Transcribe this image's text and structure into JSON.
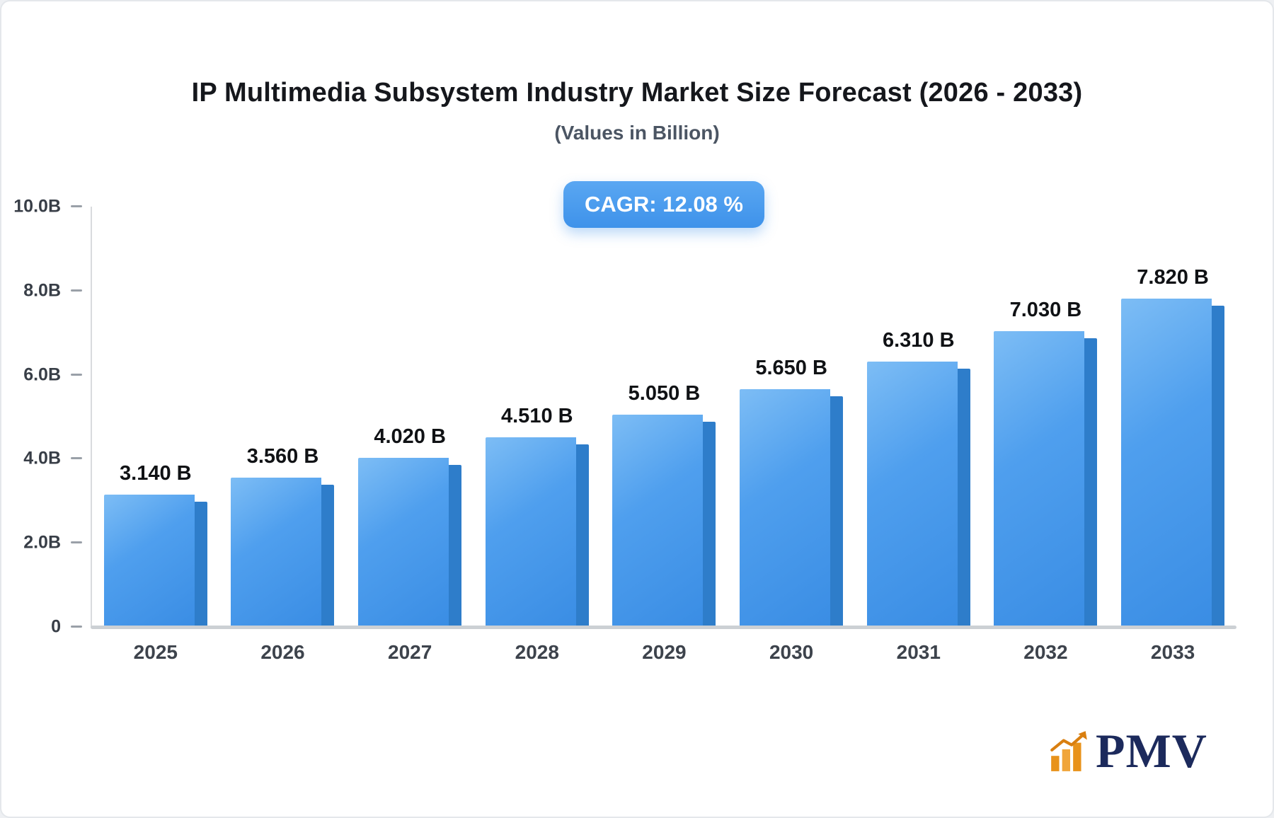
{
  "chart_data": {
    "type": "bar",
    "title": "IP Multimedia Subsystem Industry Market Size Forecast (2026 - 2033)",
    "subtitle": "(Values in Billion)",
    "cagr_badge": "CAGR: 12.08 %",
    "categories": [
      "2025",
      "2026",
      "2027",
      "2028",
      "2029",
      "2030",
      "2031",
      "2032",
      "2033"
    ],
    "values": [
      3.14,
      3.56,
      4.02,
      4.51,
      5.05,
      5.65,
      6.31,
      7.03,
      7.82
    ],
    "value_labels": [
      "3.140 B",
      "3.560 B",
      "4.020 B",
      "4.510 B",
      "5.050 B",
      "5.650 B",
      "6.310 B",
      "7.030 B",
      "7.820 B"
    ],
    "xlabel": "",
    "ylabel": "",
    "ylim": [
      0,
      10
    ],
    "ytick_labels": [
      "0",
      "2.0B",
      "4.0B",
      "6.0B",
      "8.0B",
      "10.0B"
    ],
    "grid": false,
    "legend": false,
    "bar_color": "#4496ea",
    "bar_side_color": "#2e7dca",
    "badge_color": "#3e92ea"
  },
  "branding": {
    "logo_text": "PMV",
    "logo_text_color": "#1c2a5c",
    "logo_icon": "bar-chart-growth-icon",
    "logo_icon_color": "#e8921a"
  }
}
